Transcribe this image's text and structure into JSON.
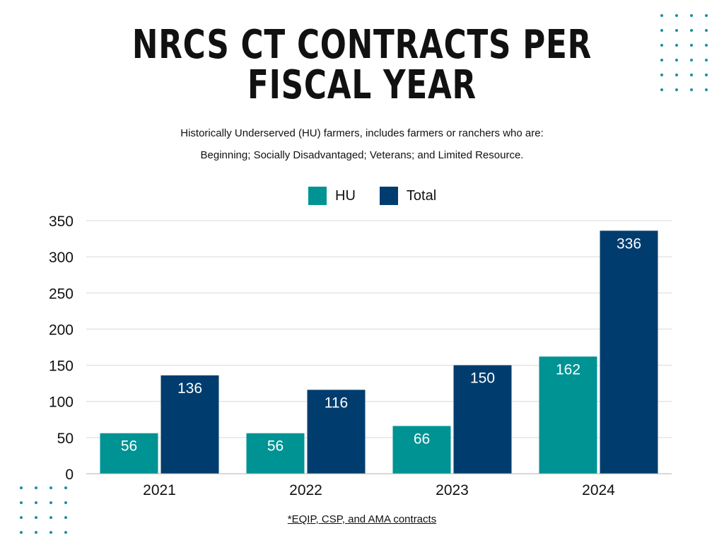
{
  "title": {
    "line1": "NRCS CT CONTRACTS PER",
    "line2": "FISCAL YEAR",
    "asterisk": "*"
  },
  "subtitle": {
    "line1": "Historically Underserved (HU) farmers, includes farmers or ranchers who are:",
    "line2": "Beginning; Socially Disadvantaged; Veterans; and Limited Resource."
  },
  "footnote": "*EQIP, CSP, and AMA contracts",
  "colors": {
    "hu": "#009394",
    "total": "#003d6e",
    "dots": "#1a8fa3"
  },
  "chart_data": {
    "type": "bar",
    "title": "NRCS CT CONTRACTS PER FISCAL YEAR",
    "xlabel": "",
    "ylabel": "",
    "categories": [
      "2021",
      "2022",
      "2023",
      "2024"
    ],
    "series": [
      {
        "name": "HU",
        "values": [
          56,
          56,
          66,
          162
        ]
      },
      {
        "name": "Total",
        "values": [
          136,
          116,
          150,
          336
        ]
      }
    ],
    "ylim": [
      0,
      350
    ],
    "yticks": [
      0,
      50,
      100,
      150,
      200,
      250,
      300,
      350
    ],
    "grid": true,
    "legend": "top-center"
  }
}
